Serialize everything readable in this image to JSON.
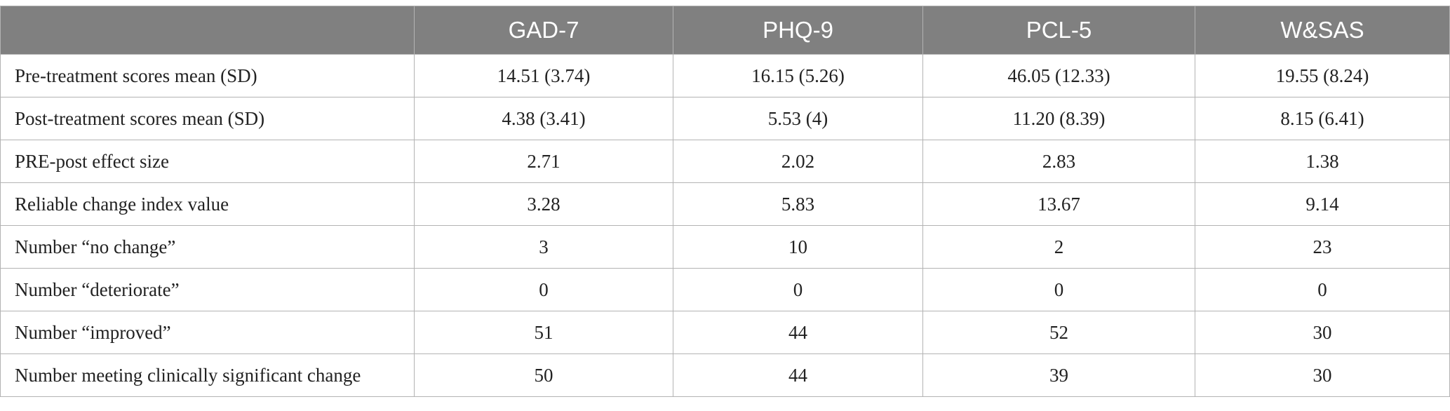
{
  "table": {
    "header": [
      "",
      "GAD-7",
      "PHQ-9",
      "PCL-5",
      "W&SAS"
    ],
    "rows": [
      [
        "Pre-treatment scores mean (SD)",
        "14.51 (3.74)",
        "16.15 (5.26)",
        "46.05 (12.33)",
        "19.55 (8.24)"
      ],
      [
        "Post-treatment scores mean (SD)",
        "4.38 (3.41)",
        "5.53 (4)",
        "11.20 (8.39)",
        "8.15 (6.41)"
      ],
      [
        "PRE-post effect size",
        "2.71",
        "2.02",
        "2.83",
        "1.38"
      ],
      [
        "Reliable change index value",
        "3.28",
        "5.83",
        "13.67",
        "9.14"
      ],
      [
        "Number “no change”",
        "3",
        "10",
        "2",
        "23"
      ],
      [
        "Number “deteriorate”",
        "0",
        "0",
        "0",
        "0"
      ],
      [
        "Number “improved”",
        "51",
        "44",
        "52",
        "30"
      ],
      [
        "Number meeting clinically significant change",
        "50",
        "44",
        "39",
        "30"
      ]
    ]
  }
}
